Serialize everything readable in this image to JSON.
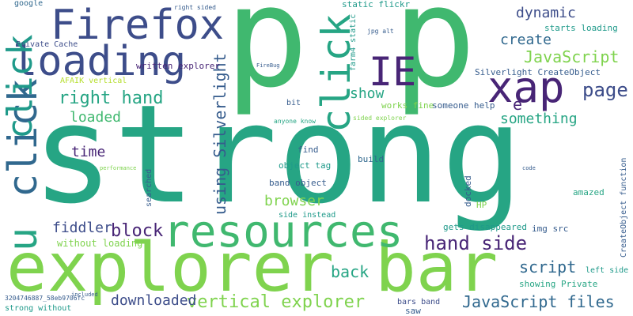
{
  "palette": {
    "green": "#40b86f",
    "teal": "#26a584",
    "lime": "#7fd34e",
    "navy": "#3d4d8a",
    "blue": "#30688e",
    "purple": "#482576",
    "cyan": "#1f9a8a",
    "yellowgreen": "#b5de2b",
    "darkblue": "#365c8d",
    "violet": "#443983"
  },
  "words": [
    {
      "text": "p"
    },
    {
      "text": "p"
    },
    {
      "text": "strong"
    },
    {
      "text": "explorer bar"
    },
    {
      "text": "resources"
    },
    {
      "text": "Firefox"
    },
    {
      "text": "loading"
    },
    {
      "text": "xap"
    },
    {
      "text": "click"
    },
    {
      "text": "click"
    },
    {
      "text": "IE"
    },
    {
      "text": "u"
    },
    {
      "text": "click"
    },
    {
      "text": "JavaScript files"
    },
    {
      "text": "vertical explorer"
    },
    {
      "text": "using Silverlight"
    },
    {
      "text": "hand side"
    },
    {
      "text": "right hand"
    },
    {
      "text": "page"
    },
    {
      "text": "JavaScript"
    },
    {
      "text": "dynamic"
    },
    {
      "text": "create"
    },
    {
      "text": "block"
    },
    {
      "text": "fiddler"
    },
    {
      "text": "script"
    },
    {
      "text": "back"
    },
    {
      "text": "browser"
    },
    {
      "text": "downloaded"
    },
    {
      "text": "loaded"
    },
    {
      "text": "something"
    },
    {
      "text": "show"
    },
    {
      "text": "time"
    },
    {
      "text": "e"
    },
    {
      "text": "Silverlight CreateObject"
    },
    {
      "text": "starts loading"
    },
    {
      "text": "static flickr"
    },
    {
      "text": "google"
    },
    {
      "text": "Private Cache"
    },
    {
      "text": "written explorer"
    },
    {
      "text": "AFAIK vertical"
    },
    {
      "text": "without loading"
    },
    {
      "text": "works fine"
    },
    {
      "text": "someone help"
    },
    {
      "text": "band object"
    },
    {
      "text": "object tag"
    },
    {
      "text": "find"
    },
    {
      "text": "build"
    },
    {
      "text": "side instead"
    },
    {
      "text": "gets disappeared"
    },
    {
      "text": "img src"
    },
    {
      "text": "docked"
    },
    {
      "text": "HP"
    },
    {
      "text": "amazed"
    },
    {
      "text": "CreateObject function"
    },
    {
      "text": "left side"
    },
    {
      "text": "showing Private"
    },
    {
      "text": "bars band"
    },
    {
      "text": "saw"
    },
    {
      "text": "strong without"
    },
    {
      "text": "3204746887_58eb9706fc"
    },
    {
      "text": "searched"
    },
    {
      "text": "bit"
    },
    {
      "text": "anyone know"
    },
    {
      "text": "sided explorer"
    },
    {
      "text": "farm4 static"
    },
    {
      "text": "right sided"
    },
    {
      "text": "FireBug"
    },
    {
      "text": "jpg alt"
    },
    {
      "text": "performance"
    },
    {
      "text": "code"
    },
    {
      "text": "included"
    }
  ]
}
